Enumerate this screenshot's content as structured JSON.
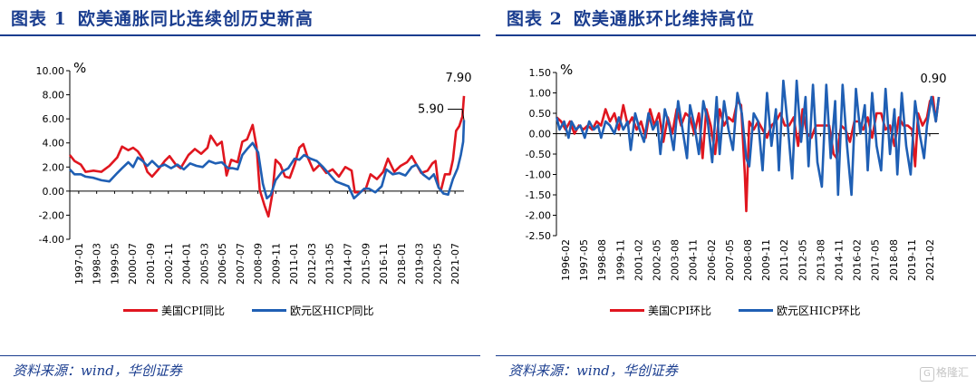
{
  "chart_data": [
    {
      "type": "line",
      "title_prefix": "图表 1",
      "title": "欧美通胀同比连续创历史新高",
      "ylabel": "%",
      "ylim": [
        -4,
        10
      ],
      "yticks": [
        "10.00",
        "8.00",
        "6.00",
        "4.00",
        "2.00",
        "0.00",
        "-2.00",
        "-4.00"
      ],
      "ytick_values": [
        10,
        8,
        6,
        4,
        2,
        0,
        -2,
        -4
      ],
      "xlim": [
        1997.0,
        2021.9
      ],
      "xticks": [
        "1997-01",
        "1998-03",
        "1999-05",
        "2000-07",
        "2001-09",
        "2002-11",
        "2004-01",
        "2005-03",
        "2006-05",
        "2007-07",
        "2008-09",
        "2009-11",
        "2011-01",
        "2012-03",
        "2013-05",
        "2014-07",
        "2015-09",
        "2016-11",
        "2018-01",
        "2019-03",
        "2020-05",
        "2021-07"
      ],
      "series": [
        {
          "name": "美国CPI同比",
          "color": "#e0161f",
          "x": [
            1997.0,
            1997.3,
            1997.7,
            1998.0,
            1998.5,
            1999.0,
            1999.5,
            2000.0,
            2000.3,
            2000.7,
            2001.0,
            2001.3,
            2001.6,
            2001.9,
            2002.2,
            2002.6,
            2003.0,
            2003.3,
            2003.7,
            2004.0,
            2004.5,
            2004.9,
            2005.3,
            2005.7,
            2005.9,
            2006.3,
            2006.6,
            2006.9,
            2007.2,
            2007.6,
            2007.9,
            2008.2,
            2008.55,
            2008.8,
            2009.0,
            2009.3,
            2009.55,
            2009.8,
            2010.0,
            2010.3,
            2010.6,
            2010.9,
            2011.2,
            2011.5,
            2011.75,
            2012.0,
            2012.4,
            2012.8,
            2013.2,
            2013.6,
            2014.0,
            2014.4,
            2014.8,
            2015.0,
            2015.3,
            2015.7,
            2016.0,
            2016.4,
            2016.8,
            2017.1,
            2017.5,
            2017.9,
            2018.3,
            2018.6,
            2018.9,
            2019.2,
            2019.6,
            2019.9,
            2020.1,
            2020.3,
            2020.45,
            2020.7,
            2021.0,
            2021.2,
            2021.4,
            2021.6,
            2021.8,
            2021.9
          ],
          "y": [
            3.0,
            2.5,
            2.2,
            1.6,
            1.7,
            1.6,
            2.1,
            2.8,
            3.7,
            3.4,
            3.6,
            3.3,
            2.7,
            1.6,
            1.2,
            1.8,
            2.5,
            2.9,
            2.2,
            1.9,
            3.0,
            3.5,
            3.1,
            3.6,
            4.6,
            3.8,
            4.1,
            1.3,
            2.6,
            2.4,
            4.1,
            4.3,
            5.5,
            3.7,
            0.1,
            -1.2,
            -2.1,
            -0.2,
            2.6,
            2.2,
            1.2,
            1.1,
            2.2,
            3.6,
            3.9,
            2.9,
            1.7,
            2.2,
            1.5,
            1.8,
            1.2,
            2.0,
            1.7,
            -0.1,
            -0.1,
            0.2,
            1.4,
            1.0,
            1.6,
            2.7,
            1.6,
            2.1,
            2.4,
            2.9,
            2.2,
            1.5,
            1.7,
            2.3,
            2.5,
            0.3,
            0.1,
            1.4,
            1.4,
            2.6,
            5.0,
            5.4,
            6.2,
            7.9
          ]
        },
        {
          "name": "欧元区HICP同比",
          "color": "#1f5fb4",
          "x": [
            1997.0,
            1997.3,
            1997.7,
            1998.0,
            1998.5,
            1999.0,
            1999.5,
            2000.0,
            2000.3,
            2000.7,
            2001.0,
            2001.3,
            2001.6,
            2001.9,
            2002.2,
            2002.6,
            2003.0,
            2003.4,
            2003.8,
            2004.2,
            2004.6,
            2005.0,
            2005.4,
            2005.8,
            2006.2,
            2006.6,
            2007.0,
            2007.3,
            2007.6,
            2007.9,
            2008.2,
            2008.55,
            2008.9,
            2009.2,
            2009.45,
            2009.7,
            2010.0,
            2010.4,
            2010.8,
            2011.2,
            2011.5,
            2011.8,
            2012.2,
            2012.6,
            2013.0,
            2013.4,
            2013.8,
            2014.2,
            2014.6,
            2014.95,
            2015.2,
            2015.6,
            2015.9,
            2016.3,
            2016.7,
            2017.0,
            2017.4,
            2017.8,
            2018.2,
            2018.6,
            2018.9,
            2019.3,
            2019.7,
            2020.0,
            2020.3,
            2020.6,
            2020.9,
            2021.2,
            2021.5,
            2021.7,
            2021.85,
            2021.9
          ],
          "y": [
            1.8,
            1.4,
            1.4,
            1.2,
            1.1,
            0.9,
            0.8,
            1.5,
            1.9,
            2.4,
            2.0,
            2.8,
            2.5,
            2.1,
            2.5,
            2.0,
            2.2,
            1.9,
            2.2,
            1.8,
            2.3,
            2.1,
            2.0,
            2.5,
            2.3,
            2.4,
            1.9,
            1.9,
            1.8,
            3.0,
            3.5,
            4.0,
            3.2,
            0.6,
            -0.6,
            -0.3,
            0.9,
            1.6,
            1.9,
            2.7,
            2.6,
            3.0,
            2.7,
            2.5,
            2.0,
            1.4,
            0.8,
            0.6,
            0.4,
            -0.6,
            -0.3,
            0.2,
            0.2,
            -0.1,
            0.4,
            1.8,
            1.4,
            1.5,
            1.3,
            2.0,
            2.2,
            1.4,
            1.0,
            1.4,
            0.3,
            -0.2,
            -0.3,
            1.0,
            1.9,
            3.0,
            4.1,
            5.9
          ]
        }
      ],
      "annotations": [
        {
          "text": "7.90",
          "series": 0,
          "x": 2021.9,
          "y": 7.9,
          "position": "above"
        },
        {
          "text": "5.90",
          "series": 1,
          "x": 2021.9,
          "y": 5.9,
          "position": "left"
        }
      ],
      "legend": [
        "美国CPI同比",
        "欧元区HICP同比"
      ],
      "legend_position": "bottom",
      "grid": false
    },
    {
      "type": "line",
      "title_prefix": "图表 2",
      "title": "欧美通胀环比维持高位",
      "ylabel": "%",
      "ylim": [
        -2.5,
        1.5
      ],
      "yticks": [
        "1.50",
        "1.00",
        "0.50",
        "0.00",
        "-0.50",
        "-1.00",
        "-1.50",
        "-2.00",
        "-2.50"
      ],
      "ytick_values": [
        1.5,
        1.0,
        0.5,
        0,
        -0.5,
        -1.0,
        -1.5,
        -2.0,
        -2.5
      ],
      "xlim": [
        1996.083,
        2021.9
      ],
      "xticks": [
        "1996-02",
        "1997-05",
        "1998-08",
        "1999-11",
        "2001-02",
        "2002-05",
        "2003-08",
        "2004-11",
        "2006-02",
        "2007-05",
        "2008-08",
        "2009-11",
        "2011-02",
        "2012-05",
        "2013-08",
        "2014-11",
        "2016-02",
        "2017-05",
        "2018-08",
        "2019-11",
        "2021-02"
      ],
      "series": [
        {
          "name": "美国CPI环比",
          "color": "#e0161f",
          "x": [
            1996.1,
            1996.4,
            1996.7,
            1997.0,
            1997.3,
            1997.6,
            1997.9,
            1998.2,
            1998.5,
            1998.8,
            1999.1,
            1999.4,
            1999.7,
            2000.0,
            2000.3,
            2000.6,
            2000.9,
            2001.2,
            2001.5,
            2001.8,
            2002.1,
            2002.4,
            2002.7,
            2003.0,
            2003.3,
            2003.6,
            2003.9,
            2004.2,
            2004.5,
            2004.8,
            2005.1,
            2005.4,
            2005.7,
            2005.95,
            2006.2,
            2006.5,
            2006.8,
            2007.1,
            2007.4,
            2007.7,
            2008.0,
            2008.3,
            2008.55,
            2008.8,
            2008.9,
            2009.1,
            2009.4,
            2009.7,
            2010.0,
            2010.3,
            2010.6,
            2010.9,
            2011.2,
            2011.5,
            2011.8,
            2012.1,
            2012.4,
            2012.7,
            2013.0,
            2013.3,
            2013.6,
            2013.9,
            2014.2,
            2014.5,
            2014.8,
            2015.0,
            2015.3,
            2015.6,
            2015.9,
            2016.2,
            2016.5,
            2016.8,
            2017.1,
            2017.4,
            2017.7,
            2018.0,
            2018.3,
            2018.6,
            2018.9,
            2019.2,
            2019.5,
            2019.8,
            2020.1,
            2020.3,
            2020.5,
            2020.8,
            2021.1,
            2021.3,
            2021.5,
            2021.7,
            2021.9
          ],
          "y": [
            0.4,
            0.3,
            0.1,
            0.3,
            0.0,
            0.2,
            0.1,
            0.2,
            0.1,
            0.3,
            0.2,
            0.6,
            0.3,
            0.5,
            0.1,
            0.7,
            0.2,
            0.4,
            0.1,
            0.3,
            -0.1,
            0.6,
            0.2,
            0.5,
            -0.2,
            0.4,
            0.0,
            0.6,
            0.2,
            0.5,
            0.4,
            0.0,
            0.5,
            -0.6,
            0.6,
            0.2,
            -0.5,
            0.6,
            0.2,
            0.4,
            0.3,
            0.8,
            0.7,
            -1.0,
            -1.9,
            0.3,
            0.1,
            0.3,
            0.1,
            -0.1,
            0.2,
            0.3,
            0.5,
            0.2,
            0.2,
            0.4,
            -0.3,
            0.6,
            0.0,
            -0.1,
            0.2,
            0.2,
            0.2,
            0.2,
            -0.5,
            -0.6,
            0.2,
            0.1,
            -0.2,
            0.3,
            0.3,
            0.1,
            0.4,
            -0.1,
            0.5,
            0.5,
            0.1,
            0.2,
            -0.3,
            0.4,
            0.2,
            0.2,
            0.1,
            -0.8,
            0.5,
            0.2,
            0.4,
            0.8,
            0.9,
            0.3,
            0.9
          ]
        },
        {
          "name": "欧元区HICP环比",
          "color": "#1f5fb4",
          "x": [
            1996.1,
            1996.3,
            1996.6,
            1996.9,
            1997.1,
            1997.4,
            1997.7,
            1998.0,
            1998.3,
            1998.6,
            1998.9,
            1999.1,
            1999.4,
            1999.7,
            2000.0,
            2000.3,
            2000.6,
            2000.9,
            2001.1,
            2001.4,
            2001.7,
            2002.0,
            2002.3,
            2002.6,
            2002.9,
            2003.1,
            2003.4,
            2003.7,
            2004.0,
            2004.3,
            2004.6,
            2004.9,
            2005.1,
            2005.4,
            2005.7,
            2006.0,
            2006.3,
            2006.6,
            2006.9,
            2007.1,
            2007.4,
            2007.7,
            2008.0,
            2008.3,
            2008.6,
            2008.9,
            2009.1,
            2009.4,
            2009.7,
            2010.0,
            2010.3,
            2010.6,
            2010.9,
            2011.1,
            2011.4,
            2011.7,
            2012.0,
            2012.3,
            2012.6,
            2012.9,
            2013.1,
            2013.4,
            2013.7,
            2014.0,
            2014.3,
            2014.6,
            2014.9,
            2015.1,
            2015.4,
            2015.7,
            2016.0,
            2016.3,
            2016.6,
            2016.9,
            2017.1,
            2017.4,
            2017.7,
            2018.0,
            2018.3,
            2018.6,
            2018.9,
            2019.1,
            2019.4,
            2019.7,
            2020.0,
            2020.3,
            2020.6,
            2020.9,
            2021.1,
            2021.4,
            2021.7,
            2021.9
          ],
          "y": [
            0.4,
            0.1,
            0.3,
            -0.1,
            0.3,
            0.1,
            0.2,
            -0.1,
            0.3,
            0.1,
            0.2,
            -0.1,
            0.3,
            0.2,
            0.0,
            0.4,
            0.1,
            0.3,
            -0.4,
            0.5,
            0.1,
            -0.2,
            0.5,
            0.1,
            0.3,
            -0.5,
            0.6,
            0.2,
            -0.4,
            0.8,
            0.1,
            -0.6,
            0.7,
            0.2,
            -0.5,
            0.8,
            0.3,
            -0.7,
            0.9,
            -0.5,
            0.8,
            0.1,
            -0.4,
            1.0,
            0.5,
            -0.6,
            -0.8,
            0.5,
            0.3,
            -0.9,
            1.0,
            -0.3,
            0.6,
            -0.9,
            1.3,
            0.2,
            -1.1,
            1.3,
            -0.2,
            0.9,
            -0.8,
            1.2,
            -0.7,
            -1.3,
            1.2,
            -0.6,
            0.8,
            -1.5,
            1.2,
            -0.3,
            -1.5,
            1.1,
            0.0,
            0.7,
            -0.9,
            1.0,
            -0.3,
            -0.9,
            1.1,
            -0.5,
            0.6,
            -1.0,
            1.0,
            -0.3,
            -1.0,
            0.8,
            0.0,
            -0.6,
            0.2,
            0.9,
            0.3,
            0.9
          ]
        }
      ],
      "annotations": [
        {
          "text": "0.90",
          "series": 1,
          "x": 2021.9,
          "y": 0.9,
          "position": "above"
        }
      ],
      "legend": [
        "美国CPI环比",
        "欧元区HICP环比"
      ],
      "legend_position": "bottom",
      "grid": false
    }
  ],
  "source": "资料来源：wind，华创证券",
  "watermark": "格隆汇"
}
